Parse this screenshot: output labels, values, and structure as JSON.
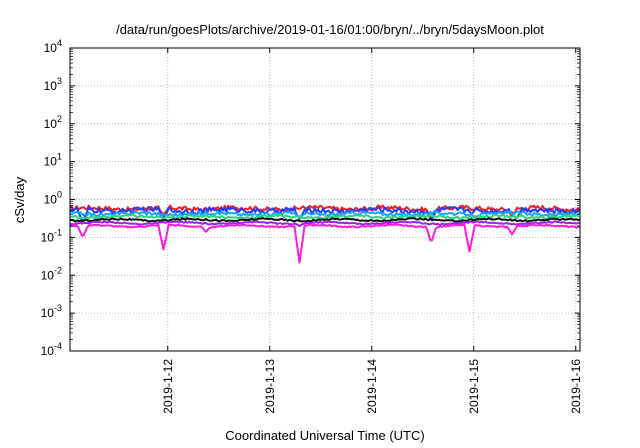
{
  "chart_data": {
    "type": "line",
    "title": "/data/run/goesPlots/archive/2019-01-16/01:00/bryn/../bryn/5daysMoon.plot",
    "xlabel": "Coordinated Universal Time (UTC)",
    "ylabel": "cSv/day",
    "yscale": "log",
    "ylim": [
      0.0001,
      10000
    ],
    "xlim": [
      "2019-01-11T01:00",
      "2019-01-16T01:00"
    ],
    "y_ticks": [
      {
        "value": 0.0001,
        "base": "10",
        "exp": "-4"
      },
      {
        "value": 0.001,
        "base": "10",
        "exp": "-3"
      },
      {
        "value": 0.01,
        "base": "10",
        "exp": "-2"
      },
      {
        "value": 0.1,
        "base": "10",
        "exp": "-1"
      },
      {
        "value": 1,
        "base": "10",
        "exp": "0"
      },
      {
        "value": 10,
        "base": "10",
        "exp": "1"
      },
      {
        "value": 100,
        "base": "10",
        "exp": "2"
      },
      {
        "value": 1000,
        "base": "10",
        "exp": "3"
      },
      {
        "value": 10000,
        "base": "10",
        "exp": "4"
      }
    ],
    "x_ticks": [
      {
        "value": "2019-01-12T00:00",
        "label": "2019-1-12"
      },
      {
        "value": "2019-01-13T00:00",
        "label": "2019-1-13"
      },
      {
        "value": "2019-01-14T00:00",
        "label": "2019-1-14"
      },
      {
        "value": "2019-01-15T00:00",
        "label": "2019-1-15"
      },
      {
        "value": "2019-01-16T00:00",
        "label": "2019-1-16"
      }
    ],
    "grid": true,
    "legend": "none",
    "series": [
      {
        "color": "#ff1a1a",
        "base": 0.58,
        "amp": 0.07,
        "dips": [
          [
            "2019-01-11T23:00",
            0.4
          ],
          [
            "2019-01-14T14:00",
            0.3
          ],
          [
            "2019-01-15T09:00",
            0.35
          ]
        ]
      },
      {
        "color": "#1f3fff",
        "base": 0.52,
        "amp": 0.08,
        "dips": [
          [
            "2019-01-11T04:00",
            0.25
          ],
          [
            "2019-01-11T23:00",
            0.35
          ],
          [
            "2019-01-13T07:00",
            0.3
          ],
          [
            "2019-01-14T14:00",
            0.28
          ],
          [
            "2019-01-15T10:00",
            0.3
          ]
        ]
      },
      {
        "color": "#1aa0ff",
        "base": 0.42,
        "amp": 0.05,
        "dips": [
          [
            "2019-01-11T23:00",
            0.4
          ],
          [
            "2019-01-13T07:00",
            0.35
          ]
        ]
      },
      {
        "color": "#2ad67a",
        "base": 0.35,
        "amp": 0.04,
        "dips": [
          [
            "2019-01-11T23:00",
            0.45
          ],
          [
            "2019-01-14T14:00",
            0.45
          ]
        ]
      },
      {
        "color": "#111111",
        "base": 0.29,
        "amp": 0.025,
        "dips": [
          [
            "2019-01-11T23:00",
            0.55
          ],
          [
            "2019-01-13T07:00",
            0.55
          ]
        ]
      },
      {
        "color": "#a020f0",
        "base": 0.24,
        "amp": 0.02,
        "dips": [
          [
            "2019-01-11T23:00",
            0.3
          ],
          [
            "2019-01-13T07:00",
            0.2
          ],
          [
            "2019-01-14T23:00",
            0.3
          ]
        ]
      },
      {
        "color": "#ff1ad9",
        "base": 0.2,
        "amp": 0.02,
        "dips": [
          [
            "2019-01-11T04:00",
            0.1
          ],
          [
            "2019-01-11T23:00",
            0.048
          ],
          [
            "2019-01-12T09:00",
            0.14
          ],
          [
            "2019-01-13T07:00",
            0.022
          ],
          [
            "2019-01-14T14:00",
            0.07
          ],
          [
            "2019-01-14T23:00",
            0.042
          ],
          [
            "2019-01-15T09:00",
            0.12
          ]
        ]
      }
    ]
  }
}
